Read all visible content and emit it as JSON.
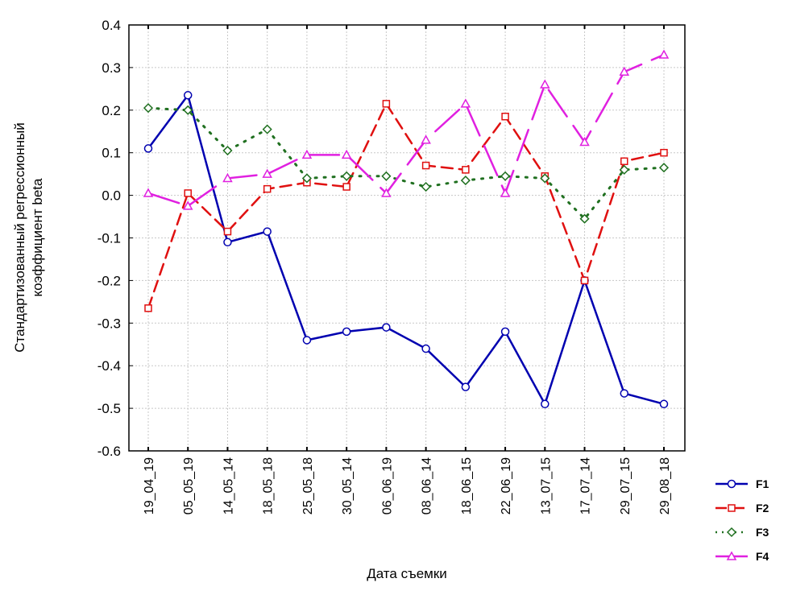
{
  "chart_data": {
    "type": "line",
    "title": "",
    "xlabel": "Дата съемки",
    "ylabel_lines": [
      "Стандартизованный регрессионный",
      "коэффициент beta"
    ],
    "ylim": [
      -0.6,
      0.4
    ],
    "yticks": [
      0.4,
      0.3,
      0.2,
      0.1,
      0.0,
      -0.1,
      -0.2,
      -0.3,
      -0.4,
      -0.5,
      -0.6
    ],
    "ytick_labels": [
      "0.4",
      "0.3",
      "0.2",
      "0.1",
      "0.0",
      "-0.1",
      "-0.2",
      "-0.3",
      "-0.4",
      "-0.5",
      "-0.6"
    ],
    "grid": true,
    "legend_position": "bottom-right",
    "categories": [
      "19_04_19",
      "05_05_19",
      "14_05_14",
      "18_05_18",
      "25_05_18",
      "30_05_14",
      "06_06_19",
      "08_06_14",
      "18_06_15",
      "22_06_19",
      "13_07_15",
      "17_07_14",
      "29_07_15",
      "29_08_18"
    ],
    "series": [
      {
        "name": "F1",
        "color": "#0000b0",
        "marker": "circle",
        "dash": "solid",
        "values": [
          0.11,
          0.235,
          -0.11,
          -0.085,
          -0.34,
          -0.32,
          -0.31,
          -0.36,
          -0.45,
          -0.32,
          -0.49,
          -0.2,
          -0.465,
          -0.49
        ]
      },
      {
        "name": "F2",
        "color": "#e01010",
        "marker": "square",
        "dash": "dashed",
        "values": [
          -0.265,
          0.005,
          -0.085,
          0.015,
          0.03,
          0.02,
          0.215,
          0.07,
          0.06,
          0.185,
          0.045,
          -0.2,
          0.08,
          0.1
        ]
      },
      {
        "name": "F3",
        "color": "#207020",
        "marker": "diamond",
        "dash": "dotted",
        "values": [
          0.205,
          0.2,
          0.105,
          0.155,
          0.04,
          0.045,
          0.045,
          0.02,
          0.035,
          0.045,
          0.04,
          -0.055,
          0.06,
          0.065
        ]
      },
      {
        "name": "F4",
        "color": "#e020e0",
        "marker": "triangle",
        "dash": "longdash",
        "values": [
          0.005,
          -0.025,
          0.04,
          0.05,
          0.095,
          0.095,
          0.005,
          0.13,
          0.215,
          0.005,
          0.26,
          0.125,
          0.29,
          0.33
        ]
      }
    ]
  }
}
